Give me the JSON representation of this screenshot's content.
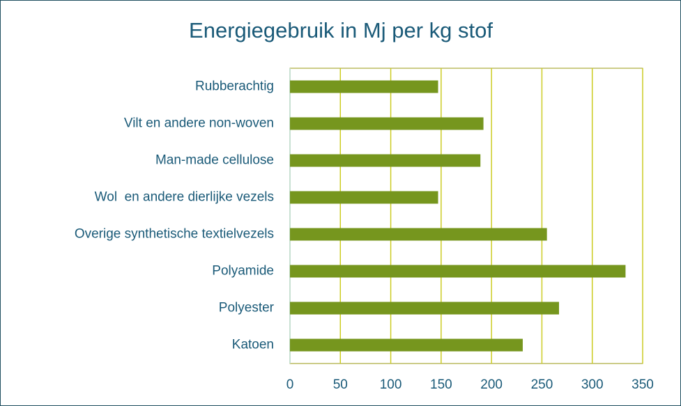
{
  "chart_data": {
    "type": "bar",
    "orientation": "horizontal",
    "title": "Energiegebruik in Mj per kg stof",
    "categories": [
      "Rubberachtig",
      "Vilt en andere non-woven",
      "Man-made cellulose",
      "Wol  en andere dierlijke vezels",
      "Overige synthetische textielvezels",
      "Polyamide",
      "Polyester",
      "Katoen"
    ],
    "values": [
      147,
      192,
      189,
      147,
      255,
      333,
      267,
      231
    ],
    "color": "#76961e",
    "xlim": [
      0,
      350
    ],
    "xticks": [
      0,
      50,
      100,
      150,
      200,
      250,
      300,
      350
    ],
    "grid": true
  }
}
